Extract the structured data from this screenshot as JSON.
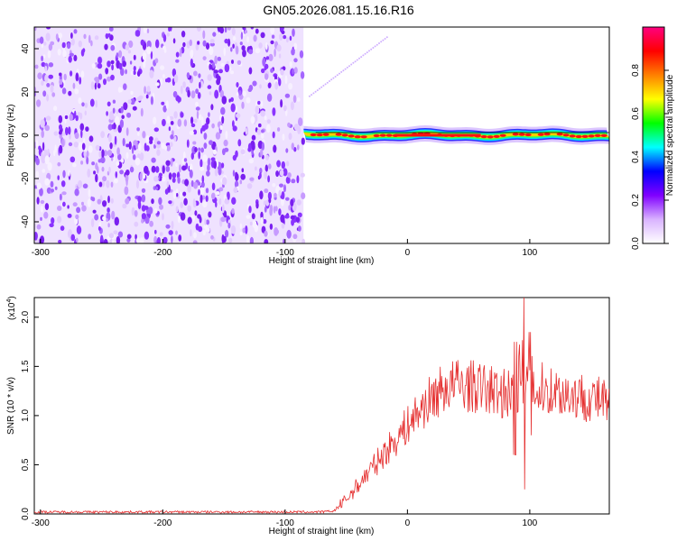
{
  "title": "GN05.2026.081.15.16.R16",
  "chart_data": [
    {
      "type": "heatmap",
      "name": "spectrogram",
      "xlabel": "Height of straight line (km)",
      "ylabel": "Frequency (Hz)",
      "xlim": [
        -305,
        165
      ],
      "ylim": [
        -50,
        50
      ],
      "xticks": [
        -300,
        -200,
        -100,
        0,
        100
      ],
      "yticks": [
        -40,
        -20,
        0,
        20,
        40
      ],
      "noise_region_x": [
        -305,
        -85
      ],
      "signal_band_x": [
        -85,
        165
      ],
      "signal_band_frequency": 0,
      "colorbar": {
        "label": "Normalized spectral amplitude",
        "range": [
          0.0,
          1.0
        ],
        "ticks": [
          "0.0",
          "0.2",
          "0.4",
          "0.6",
          "0.8"
        ],
        "colors": [
          "#ffffff",
          "#d9b3ff",
          "#8000ff",
          "#0000ff",
          "#00ffff",
          "#00ff00",
          "#ffff00",
          "#ff8000",
          "#ff0000",
          "#ff0080"
        ]
      }
    },
    {
      "type": "line",
      "name": "snr",
      "xlabel": "Height of straight line (km)",
      "ylabel": "SNR (10 * v/v)",
      "yscale_label": "(x10",
      "yscale_exp": "4",
      "xlim": [
        -305,
        165
      ],
      "ylim": [
        0,
        2.2
      ],
      "xticks": [
        -300,
        -200,
        -100,
        0,
        100
      ],
      "yticks": [
        "0.0",
        "0.5",
        "1.0",
        "1.5",
        "2.0"
      ],
      "color": "#e53030",
      "series": [
        {
          "name": "SNR",
          "x": [
            -305,
            -280,
            -250,
            -220,
            -190,
            -160,
            -130,
            -100,
            -80,
            -70,
            -60,
            -50,
            -40,
            -30,
            -20,
            -10,
            0,
            10,
            20,
            30,
            40,
            50,
            60,
            70,
            80,
            90,
            95,
            100,
            110,
            120,
            130,
            140,
            150,
            160,
            165
          ],
          "y": [
            0.02,
            0.02,
            0.02,
            0.02,
            0.02,
            0.02,
            0.02,
            0.02,
            0.02,
            0.02,
            0.03,
            0.15,
            0.3,
            0.45,
            0.6,
            0.75,
            0.9,
            1.05,
            1.18,
            1.28,
            1.32,
            1.3,
            1.28,
            1.25,
            1.22,
            1.25,
            1.3,
            1.3,
            1.28,
            1.25,
            1.22,
            1.2,
            1.18,
            1.15,
            1.07
          ],
          "spikes": [
            {
              "x": 88,
              "min": 0.6,
              "max": 1.75
            },
            {
              "x": 95,
              "min": 0.25,
              "max": 2.2
            },
            {
              "x": 100,
              "min": 0.8,
              "max": 1.85
            }
          ]
        }
      ]
    }
  ]
}
